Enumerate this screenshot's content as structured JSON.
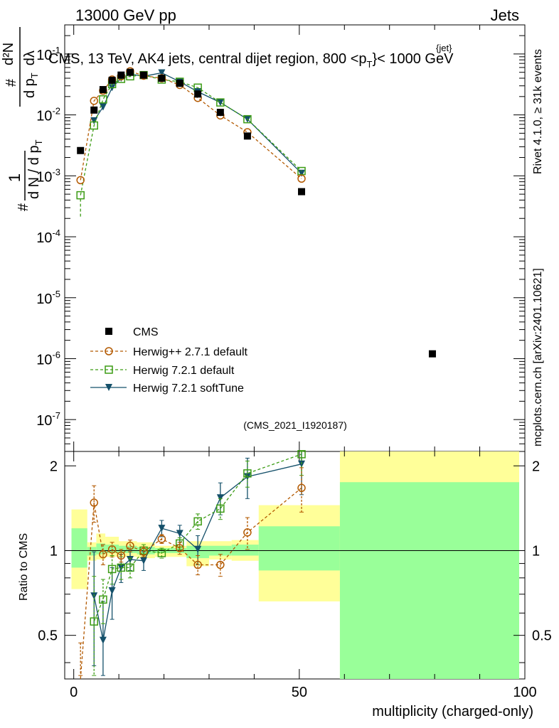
{
  "header": {
    "energy_label": "13000 GeV pp",
    "category_label": "Jets",
    "plot_title": "CMS, 13 TeV, AK4 jets, central dijet region, 800 <p",
    "plot_title_sup": "{jet}",
    "plot_title_sub": "T",
    "plot_title_end": "}< 1000 GeV",
    "rivet_label": "Rivet 4.1.0, ≥ 31k events",
    "mcplots_label": "mcplots.cern.ch [arXiv:2401.10621]",
    "analysis_id": "(CMS_2021_I1920187)"
  },
  "colors": {
    "cms": "#000000",
    "herwigpp": "#b35900",
    "herwig72": "#3c9c14",
    "softtune": "#14506a",
    "band_yellow": "#ffff99",
    "band_green": "#99ff99"
  },
  "chart_data": [
    {
      "type": "scatter",
      "panel": "main",
      "yscale": "log",
      "ylabel": "1/#N d#N/dp_T # d^2N / dp_T dlambda",
      "ylabel_parts": {
        "frac1_num": "1",
        "frac1_den": "d N / d p",
        "frac1_den_sub": "T",
        "frac1_hash": "#",
        "frac2_hash_top": "#",
        "frac2_num": "d²N",
        "frac2_den": "d p",
        "frac2_den_sub": "T",
        "frac2_den_end": "dλ"
      },
      "xlim": [
        -2,
        100
      ],
      "ylim": [
        3e-08,
        0.3
      ],
      "y_ticks": [
        {
          "value": 1e-07,
          "base": "10",
          "exp": "-7"
        },
        {
          "value": 1e-06,
          "base": "10",
          "exp": "-6"
        },
        {
          "value": 1e-05,
          "base": "10",
          "exp": "-5"
        },
        {
          "value": 0.0001,
          "base": "10",
          "exp": "-4"
        },
        {
          "value": 0.001,
          "base": "10",
          "exp": "-3"
        },
        {
          "value": 0.01,
          "base": "10",
          "exp": "-2"
        },
        {
          "value": 0.1,
          "base": "10",
          "exp": "-1"
        }
      ],
      "series": [
        {
          "name": "CMS",
          "key": "cms",
          "marker": "filled-square",
          "line": "none",
          "x": [
            1.5,
            4.5,
            6.5,
            8.5,
            10.5,
            12.5,
            15.5,
            19.5,
            23.5,
            27.5,
            32.5,
            38.5,
            50.5,
            79.5
          ],
          "y": [
            0.0026,
            0.012,
            0.026,
            0.037,
            0.045,
            0.05,
            0.045,
            0.04,
            0.033,
            0.022,
            0.011,
            0.0045,
            0.00055,
            1.2e-06
          ]
        },
        {
          "name": "Herwig++ 2.7.1 default",
          "key": "herwigpp",
          "marker": "open-circle",
          "line": "dashed",
          "x": [
            1.5,
            4.5,
            6.5,
            8.5,
            10.5,
            12.5,
            15.5,
            19.5,
            23.5,
            27.5,
            32.5,
            38.5,
            50.5
          ],
          "y": [
            0.00085,
            0.017,
            0.025,
            0.038,
            0.043,
            0.052,
            0.044,
            0.04,
            0.031,
            0.019,
            0.0098,
            0.0052,
            0.0009
          ]
        },
        {
          "name": "Herwig 7.2.1 default",
          "key": "herwig72",
          "marker": "open-square",
          "line": "dashed",
          "x": [
            1.5,
            4.5,
            6.5,
            8.5,
            10.5,
            12.5,
            15.5,
            19.5,
            23.5,
            27.5,
            32.5,
            38.5,
            50.5
          ],
          "y": [
            0.00048,
            0.0067,
            0.018,
            0.032,
            0.039,
            0.043,
            0.045,
            0.038,
            0.035,
            0.028,
            0.016,
            0.0085,
            0.0012
          ]
        },
        {
          "name": "Herwig 7.2.1 softTune",
          "key": "softtune",
          "marker": "filled-triangle-down",
          "line": "solid",
          "x": [
            4.5,
            6.5,
            8.5,
            10.5,
            12.5,
            15.5,
            19.5,
            23.5,
            27.5,
            32.5,
            38.5,
            50.5
          ],
          "y": [
            0.008,
            0.0135,
            0.028,
            0.04,
            0.047,
            0.043,
            0.049,
            0.035,
            0.024,
            0.016,
            0.0085,
            0.0011
          ]
        }
      ],
      "legend_position": "lower-left"
    },
    {
      "type": "scatter",
      "panel": "ratio",
      "ylabel": "Ratio to CMS",
      "xlabel": "multiplicity (charged-only)",
      "xlim": [
        -2,
        100
      ],
      "ylim": [
        0.35,
        2.25
      ],
      "x_ticks": [
        0,
        50,
        100
      ],
      "y_ticks": [
        0.5,
        1,
        2
      ],
      "bands": [
        {
          "x0": -0.5,
          "x1": 3,
          "yellow": [
            0.73,
            1.4
          ],
          "green": [
            0.87,
            1.2
          ]
        },
        {
          "x0": 3,
          "x1": 5,
          "yellow": [
            0.92,
            1.07
          ],
          "green": [
            0.96,
            1.03
          ]
        },
        {
          "x0": 5,
          "x1": 7,
          "yellow": [
            0.93,
            1.15
          ],
          "green": [
            0.97,
            1.06
          ]
        },
        {
          "x0": 7,
          "x1": 10,
          "yellow": [
            0.95,
            1.12
          ],
          "green": [
            0.98,
            1.05
          ]
        },
        {
          "x0": 10,
          "x1": 14,
          "yellow": [
            0.95,
            1.08
          ],
          "green": [
            0.98,
            1.04
          ]
        },
        {
          "x0": 14,
          "x1": 18,
          "yellow": [
            0.94,
            1.07
          ],
          "green": [
            0.97,
            1.03
          ]
        },
        {
          "x0": 18,
          "x1": 25,
          "yellow": [
            0.95,
            1.04
          ],
          "green": [
            0.98,
            1.02
          ]
        },
        {
          "x0": 25,
          "x1": 30,
          "yellow": [
            0.88,
            1.08
          ],
          "green": [
            0.94,
            1.04
          ]
        },
        {
          "x0": 30,
          "x1": 35,
          "yellow": [
            0.93,
            1.08
          ],
          "green": [
            0.96,
            1.04
          ]
        },
        {
          "x0": 35,
          "x1": 41,
          "yellow": [
            0.92,
            1.09
          ],
          "green": [
            0.96,
            1.05
          ]
        },
        {
          "x0": 41,
          "x1": 59,
          "yellow": [
            0.66,
            1.45
          ],
          "green": [
            0.85,
            1.22
          ]
        },
        {
          "x0": 59,
          "x1": 99,
          "yellow": [
            0.35,
            2.25
          ],
          "green": [
            0.35,
            1.75
          ]
        }
      ],
      "series": [
        {
          "name": "Herwig++ 2.7.1 default",
          "key": "herwigpp",
          "marker": "open-circle",
          "line": "dashed",
          "x": [
            1.5,
            4.5,
            6.5,
            8.5,
            10.5,
            12.5,
            15.5,
            19.5,
            23.5,
            27.5,
            32.5,
            38.5,
            50.5
          ],
          "y": [
            0.32,
            1.48,
            0.97,
            1.01,
            0.96,
            1.04,
            0.99,
            1.1,
            1.02,
            0.89,
            0.89,
            1.16,
            1.67
          ],
          "err": [
            0.15,
            0.22,
            0.08,
            0.06,
            0.05,
            0.05,
            0.04,
            0.04,
            0.05,
            0.07,
            0.08,
            0.15,
            0.3
          ]
        },
        {
          "name": "Herwig 7.2.1 default",
          "key": "herwig72",
          "marker": "open-square",
          "line": "dashed",
          "x": [
            4.5,
            6.5,
            8.5,
            10.5,
            12.5,
            15.5,
            19.5,
            23.5,
            27.5,
            32.5,
            38.5,
            50.5
          ],
          "y": [
            0.56,
            0.67,
            0.86,
            0.87,
            0.87,
            1.0,
            0.98,
            1.06,
            1.27,
            1.41,
            1.88,
            2.2
          ],
          "err": [
            0.25,
            0.12,
            0.1,
            0.08,
            0.07,
            0.05,
            0.04,
            0.05,
            0.08,
            0.12,
            0.2,
            0.35
          ]
        },
        {
          "name": "Herwig 7.2.1 softTune",
          "key": "softtune",
          "marker": "filled-triangle-down",
          "line": "solid",
          "x": [
            4.5,
            6.5,
            8.5,
            10.5,
            12.5,
            15.5,
            19.5,
            23.5,
            27.5,
            32.5,
            38.5,
            50.5
          ],
          "y": [
            0.69,
            0.48,
            0.72,
            0.87,
            0.93,
            0.92,
            1.2,
            1.15,
            1.01,
            1.54,
            1.83,
            2.03
          ],
          "err": [
            0.3,
            0.18,
            0.15,
            0.1,
            0.08,
            0.07,
            0.08,
            0.08,
            0.12,
            0.2,
            0.3,
            0.45
          ]
        }
      ]
    }
  ]
}
